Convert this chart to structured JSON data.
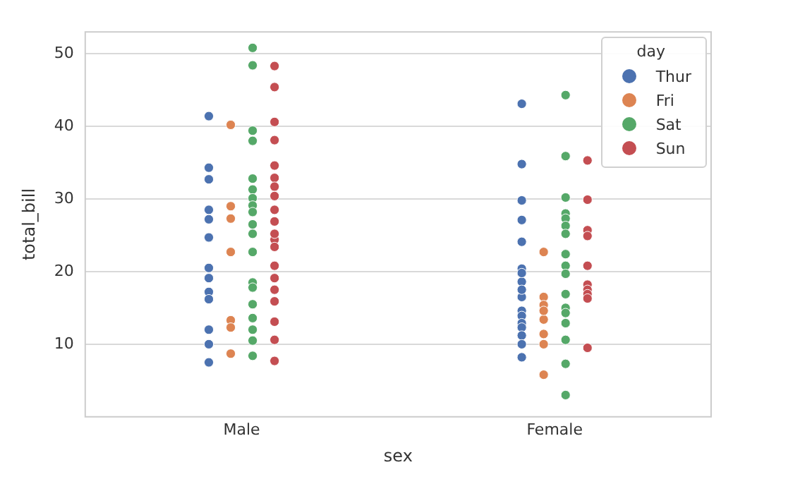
{
  "chart_data": {
    "type": "scatter",
    "xlabel": "sex",
    "ylabel": "total_bill",
    "legend_title": "day",
    "legend": "top right",
    "grid": "y",
    "marker": "circle",
    "categories": [
      "Male",
      "Female"
    ],
    "ylim": [
      0,
      53
    ],
    "yticks": [
      10,
      20,
      30,
      40,
      50
    ],
    "series": [
      {
        "name": "Thur",
        "color": "#4c72b0",
        "x": [
          "Male",
          "Male",
          "Male",
          "Male",
          "Male",
          "Male",
          "Male",
          "Male",
          "Male",
          "Male",
          "Male",
          "Male",
          "Male",
          "Female",
          "Female",
          "Female",
          "Female",
          "Female",
          "Female",
          "Female",
          "Female",
          "Female",
          "Female",
          "Female",
          "Female",
          "Female",
          "Female",
          "Female",
          "Female",
          "Female"
        ],
        "values": [
          41.4,
          34.3,
          32.7,
          28.5,
          27.2,
          24.7,
          20.5,
          17.2,
          16.2,
          12.0,
          10.0,
          7.5,
          19.1,
          43.1,
          34.8,
          29.8,
          27.1,
          24.1,
          20.4,
          18.6,
          19.8,
          16.5,
          17.5,
          14.6,
          13.9,
          12.9,
          12.3,
          11.2,
          10.0,
          8.2
        ]
      },
      {
        "name": "Fri",
        "color": "#dd8452",
        "x": [
          "Male",
          "Male",
          "Male",
          "Male",
          "Male",
          "Male",
          "Male",
          "Female",
          "Female",
          "Female",
          "Female",
          "Female",
          "Female",
          "Female",
          "Female"
        ],
        "values": [
          40.2,
          29.0,
          27.3,
          13.3,
          12.3,
          8.7,
          22.7,
          22.7,
          16.5,
          15.4,
          13.4,
          11.4,
          10.0,
          5.8,
          14.6
        ]
      },
      {
        "name": "Sat",
        "color": "#55a868",
        "x": [
          "Male",
          "Male",
          "Male",
          "Male",
          "Male",
          "Male",
          "Male",
          "Male",
          "Male",
          "Male",
          "Male",
          "Male",
          "Male",
          "Male",
          "Male",
          "Male",
          "Male",
          "Male",
          "Male",
          "Female",
          "Female",
          "Female",
          "Female",
          "Female",
          "Female",
          "Female",
          "Female",
          "Female",
          "Female",
          "Female",
          "Female",
          "Female",
          "Female",
          "Female",
          "Female",
          "Female"
        ],
        "values": [
          50.8,
          48.4,
          39.4,
          38.0,
          32.8,
          31.3,
          30.1,
          29.1,
          28.2,
          26.5,
          25.2,
          22.7,
          18.5,
          17.8,
          15.5,
          13.6,
          12.0,
          10.5,
          8.4,
          44.3,
          35.9,
          30.2,
          28.0,
          27.3,
          26.3,
          25.2,
          22.4,
          20.8,
          19.7,
          16.9,
          15.0,
          14.3,
          12.9,
          10.6,
          7.3,
          3.0
        ]
      },
      {
        "name": "Sun",
        "color": "#c44e52",
        "x": [
          "Male",
          "Male",
          "Male",
          "Male",
          "Male",
          "Male",
          "Male",
          "Male",
          "Male",
          "Male",
          "Male",
          "Male",
          "Male",
          "Male",
          "Male",
          "Male",
          "Male",
          "Male",
          "Male",
          "Male",
          "Female",
          "Female",
          "Female",
          "Female",
          "Female",
          "Female",
          "Female",
          "Female",
          "Female",
          "Female"
        ],
        "values": [
          48.3,
          45.4,
          40.6,
          38.1,
          34.6,
          32.9,
          31.7,
          30.4,
          28.5,
          26.9,
          24.4,
          25.2,
          20.8,
          17.5,
          15.9,
          13.1,
          10.6,
          7.7,
          23.4,
          19.1,
          35.3,
          29.9,
          25.7,
          24.9,
          20.8,
          18.2,
          17.5,
          16.9,
          16.3,
          9.5
        ]
      }
    ]
  }
}
